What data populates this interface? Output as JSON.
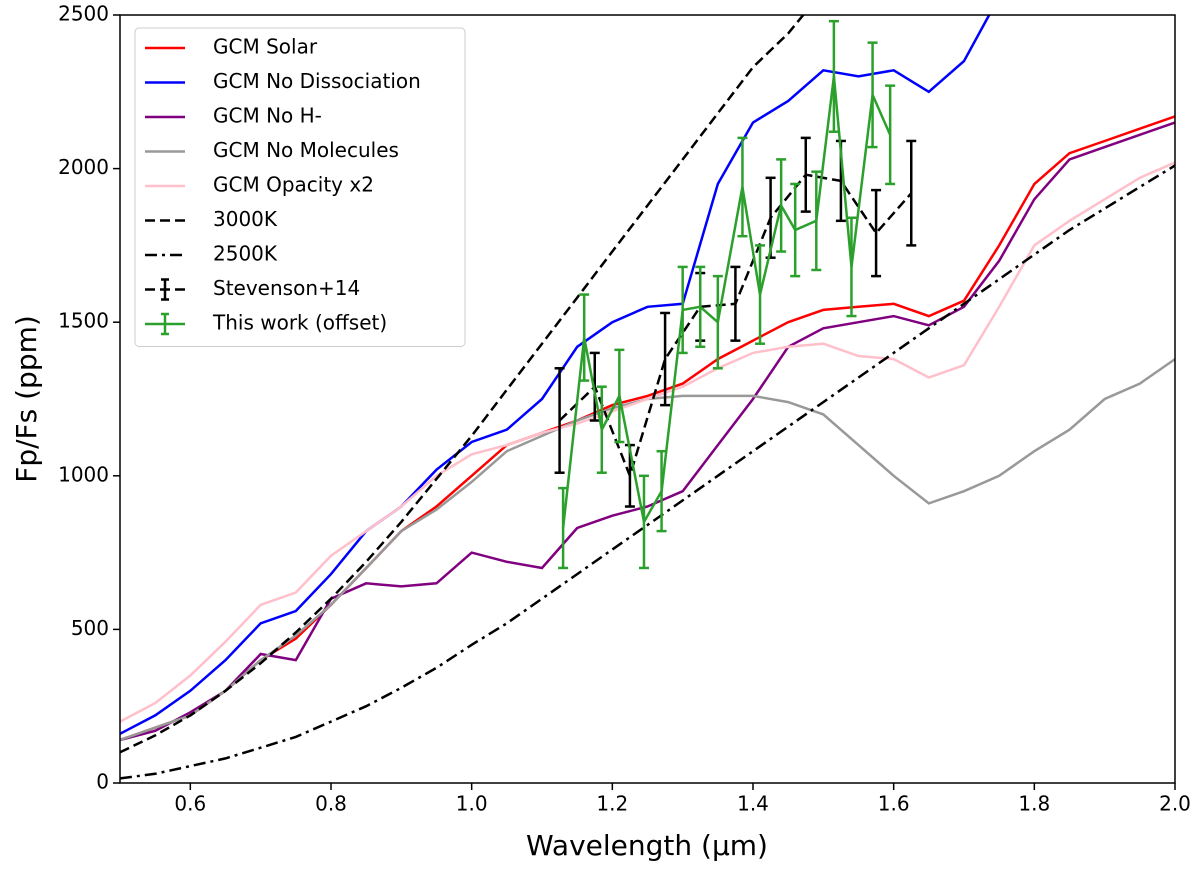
{
  "chart_data": {
    "type": "line",
    "xlabel": "Wavelength (μm)",
    "ylabel": "Fp/Fs (ppm)",
    "xlim": [
      0.5,
      2.0
    ],
    "ylim": [
      0,
      2500
    ],
    "xticks": [
      0.6,
      0.8,
      {
        "value": 1,
        "label": "1.0"
      },
      1.2,
      1.4,
      1.6,
      1.8,
      {
        "value": 2,
        "label": "2.0"
      }
    ],
    "yticks": [
      0,
      500,
      1000,
      1500,
      2000,
      2500
    ],
    "legend": "upper left",
    "x": [
      0.5,
      0.55,
      0.6,
      0.65,
      0.7,
      0.75,
      0.8,
      0.85,
      0.9,
      0.95,
      1.0,
      1.05,
      1.1,
      1.15,
      1.2,
      1.25,
      1.3,
      1.35,
      1.4,
      1.45,
      1.5,
      1.55,
      1.6,
      1.65,
      1.7,
      1.75,
      1.8,
      1.85,
      1.9,
      1.95,
      2.0
    ],
    "series": [
      {
        "name": "GCM Solar",
        "color": "#ff0000",
        "dash": "solid",
        "values": [
          140,
          180,
          220,
          300,
          400,
          470,
          580,
          700,
          820,
          900,
          1000,
          1100,
          1140,
          1180,
          1230,
          1260,
          1300,
          1380,
          1440,
          1500,
          1540,
          1550,
          1560,
          1520,
          1570,
          1750,
          1950,
          2050,
          2090,
          2130,
          2170
        ]
      },
      {
        "name": "GCM No Dissociation",
        "color": "#0000ff",
        "dash": "solid",
        "values": [
          160,
          220,
          300,
          400,
          520,
          560,
          680,
          820,
          900,
          1020,
          1110,
          1150,
          1250,
          1420,
          1500,
          1550,
          1560,
          1950,
          2150,
          2220,
          2320,
          2300,
          2320,
          2250,
          2350,
          2560,
          null,
          null,
          null,
          null,
          null
        ]
      },
      {
        "name": "GCM No H-",
        "color": "#800080",
        "dash": "solid",
        "values": [
          140,
          170,
          230,
          300,
          420,
          400,
          600,
          650,
          640,
          650,
          750,
          720,
          700,
          830,
          870,
          900,
          950,
          1100,
          1250,
          1420,
          1480,
          1500,
          1520,
          1490,
          1550,
          1700,
          1900,
          2030,
          2070,
          2110,
          2150
        ]
      },
      {
        "name": "GCM No Molecules",
        "color": "#999999",
        "dash": "solid",
        "values": [
          140,
          180,
          220,
          300,
          400,
          480,
          580,
          700,
          820,
          890,
          980,
          1080,
          1130,
          1180,
          1220,
          1250,
          1260,
          1260,
          1260,
          1240,
          1200,
          1100,
          1000,
          910,
          950,
          1000,
          1080,
          1150,
          1250,
          1300,
          1380
        ]
      },
      {
        "name": "GCM Opacity x2",
        "color": "#ffc0cb",
        "dash": "solid",
        "values": [
          200,
          260,
          350,
          460,
          580,
          620,
          740,
          820,
          900,
          1000,
          1070,
          1100,
          1140,
          1170,
          1210,
          1250,
          1290,
          1350,
          1400,
          1420,
          1430,
          1390,
          1380,
          1320,
          1360,
          1550,
          1750,
          1830,
          1900,
          1970,
          2020
        ]
      },
      {
        "name": "3000K",
        "color": "#000000",
        "dash": "dashed",
        "values": [
          100,
          155,
          220,
          300,
          390,
          490,
          600,
          720,
          850,
          990,
          1130,
          1280,
          1430,
          1580,
          1730,
          1880,
          2030,
          2180,
          2330,
          2440,
          2580,
          null,
          null,
          null,
          null,
          null,
          null,
          null,
          null,
          null,
          null
        ]
      },
      {
        "name": "2500K",
        "color": "#000000",
        "dash": "dashdot",
        "values": [
          15,
          30,
          55,
          80,
          115,
          150,
          200,
          250,
          310,
          375,
          450,
          520,
          600,
          680,
          760,
          840,
          920,
          1000,
          1080,
          1160,
          1240,
          1320,
          1400,
          1480,
          1560,
          1640,
          1720,
          1800,
          1870,
          1940,
          2010
        ]
      },
      {
        "name": "Stevenson+14",
        "color": "#000000",
        "dash": "dashed",
        "x": [
          1.125,
          1.175,
          1.225,
          1.275,
          1.325,
          1.375,
          1.425,
          1.475,
          1.525,
          1.575,
          1.625
        ],
        "values": [
          1180,
          1290,
          1000,
          1380,
          1550,
          1560,
          1840,
          1980,
          1960,
          1790,
          1920
        ],
        "errors": [
          170,
          110,
          100,
          150,
          110,
          120,
          130,
          120,
          130,
          140,
          170
        ]
      },
      {
        "name": "This work (offset)",
        "color": "#2ca02c",
        "dash": "solid",
        "x": [
          1.13,
          1.16,
          1.185,
          1.21,
          1.245,
          1.27,
          1.3,
          1.325,
          1.35,
          1.385,
          1.41,
          1.44,
          1.46,
          1.49,
          1.515,
          1.54,
          1.57,
          1.595
        ],
        "values": [
          830,
          1450,
          1150,
          1260,
          850,
          950,
          1540,
          1550,
          1500,
          1940,
          1590,
          1880,
          1800,
          1830,
          2300,
          1680,
          2240,
          2110
        ],
        "errors": [
          130,
          140,
          140,
          150,
          150,
          130,
          140,
          130,
          150,
          160,
          160,
          150,
          150,
          160,
          180,
          160,
          170,
          160
        ]
      }
    ]
  }
}
